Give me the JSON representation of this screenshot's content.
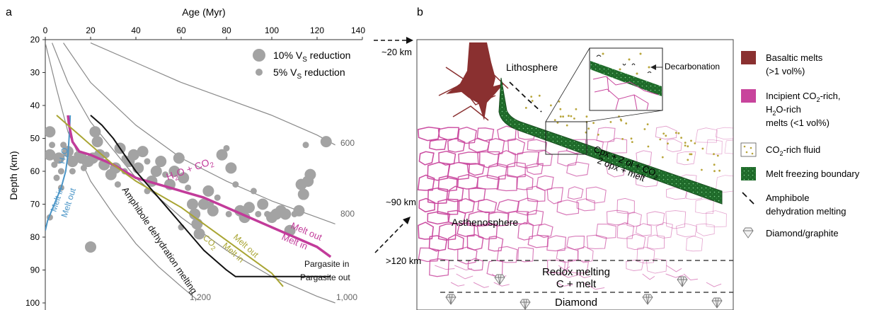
{
  "panel_a": {
    "letter": "a",
    "top_axis_label": "Age (Myr)",
    "top_ticks": [
      "0",
      "20",
      "40",
      "60",
      "80",
      "100",
      "120",
      "140"
    ],
    "y_axis_label": "Depth (km)",
    "y_ticks": [
      "20",
      "30",
      "40",
      "50",
      "60",
      "70",
      "80",
      "90",
      "100"
    ],
    "legend": {
      "big_pre": "10%  V",
      "big_sub": "S",
      "big_post": " reduction",
      "small_pre": "5%  V",
      "small_sub": "S",
      "small_post": " reduction"
    },
    "iso_labels": [
      "600",
      "800",
      "1,000",
      "1,200"
    ],
    "labels": {
      "h2o": "H",
      "h2o_sub": "2",
      "h2o_end": "O",
      "melt_in_blue": "Melt in",
      "melt_out_blue": "Melt out",
      "h2o_co2_a": "H",
      "h2o_co2_b": "2",
      "h2o_co2_c": "O + CO",
      "h2o_co2_d": "2",
      "amphibole": "Amphibole dehydration melting",
      "co2_a": "CO",
      "co2_b": "2",
      "melt_in_olive": "Melt in",
      "melt_out_olive": "Melt out",
      "melt_out_magenta": "Melt out",
      "melt_in_magenta": "Melt in",
      "pargasite_in": "Pargasite in",
      "pargasite_out": "Pargasite out"
    },
    "colors": {
      "h2o": "#4a95c7",
      "h2o_co2": "#c23b9a",
      "co2": "#a9a533",
      "amphibole": "#111111",
      "iso": "#8a8a8a",
      "dots": "#a3a3a3"
    }
  },
  "panel_b": {
    "letter": "b",
    "depth_labels": [
      "~20 km",
      "~90 km",
      ">120 km"
    ],
    "labels": {
      "lithosphere": "Lithosphere",
      "asthenosphere": "Asthenosphere",
      "decarbonation": "Decarbonation",
      "cpx_a": "Cpx + 2 ol + CO",
      "cpx_b": "2",
      "opx": "2 opx + melt",
      "redox": "Redox melting",
      "c_melt": "C + melt",
      "diamond": "Diamond"
    },
    "colors": {
      "basalt": "#8a3030",
      "incipient": "#c8449c",
      "green": "#1f6a2a",
      "fluid": "#b8a53a"
    }
  },
  "legend_b": [
    {
      "key": "basalt",
      "lines": [
        [
          "Basaltic melts"
        ],
        [
          "(>1 vol%)"
        ]
      ]
    },
    {
      "key": "incipient",
      "lines": [
        [
          "Incipient CO",
          "2",
          "-rich,"
        ],
        [
          "H",
          "2",
          "O-rich"
        ],
        [
          "melts (<1 vol%)"
        ]
      ]
    },
    {
      "key": "fluid",
      "lines": [
        [
          "CO",
          "2",
          "-rich fluid"
        ]
      ]
    },
    {
      "key": "freeze",
      "lines": [
        [
          "Melt freezing boundary"
        ]
      ]
    },
    {
      "key": "amph",
      "lines": [
        [
          "Amphibole"
        ],
        [
          "dehydration melting"
        ]
      ]
    },
    {
      "key": "diamond",
      "lines": [
        [
          "Diamond/graphite"
        ]
      ]
    }
  ],
  "chart_data": {
    "type": "scatter",
    "xlabel": "Age (Myr)",
    "ylabel": "Depth (km)",
    "xlim": [
      0,
      140
    ],
    "ylim": [
      100,
      20
    ],
    "x_ticks": [
      0,
      20,
      40,
      60,
      80,
      100,
      120,
      140
    ],
    "y_ticks": [
      20,
      30,
      40,
      50,
      60,
      70,
      80,
      90,
      100
    ],
    "points": [
      {
        "x": 2,
        "y": 48,
        "s": 1
      },
      {
        "x": 3,
        "y": 52,
        "s": 0
      },
      {
        "x": 2,
        "y": 55,
        "s": 1
      },
      {
        "x": 4,
        "y": 58,
        "s": 0
      },
      {
        "x": 6,
        "y": 56,
        "s": 1
      },
      {
        "x": 5,
        "y": 62,
        "s": 0
      },
      {
        "x": 7,
        "y": 60,
        "s": 0
      },
      {
        "x": 8,
        "y": 52,
        "s": 0
      },
      {
        "x": 10,
        "y": 54,
        "s": 1
      },
      {
        "x": 12,
        "y": 57,
        "s": 1
      },
      {
        "x": 14,
        "y": 55,
        "s": 0
      },
      {
        "x": 16,
        "y": 56,
        "s": 1
      },
      {
        "x": 17,
        "y": 59,
        "s": 0
      },
      {
        "x": 19,
        "y": 57,
        "s": 1
      },
      {
        "x": 21,
        "y": 56,
        "s": 1
      },
      {
        "x": 22,
        "y": 48,
        "s": 1
      },
      {
        "x": 23,
        "y": 51,
        "s": 1
      },
      {
        "x": 24,
        "y": 55,
        "s": 1
      },
      {
        "x": 26,
        "y": 58,
        "s": 1
      },
      {
        "x": 27,
        "y": 55,
        "s": 0
      },
      {
        "x": 29,
        "y": 61,
        "s": 1
      },
      {
        "x": 31,
        "y": 59,
        "s": 1
      },
      {
        "x": 33,
        "y": 53,
        "s": 1
      },
      {
        "x": 35,
        "y": 56,
        "s": 0
      },
      {
        "x": 37,
        "y": 57,
        "s": 1
      },
      {
        "x": 39,
        "y": 55,
        "s": 1
      },
      {
        "x": 41,
        "y": 59,
        "s": 1
      },
      {
        "x": 43,
        "y": 54,
        "s": 1
      },
      {
        "x": 45,
        "y": 57,
        "s": 0
      },
      {
        "x": 47,
        "y": 63,
        "s": 1
      },
      {
        "x": 49,
        "y": 60,
        "s": 1
      },
      {
        "x": 51,
        "y": 57,
        "s": 1
      },
      {
        "x": 53,
        "y": 61,
        "s": 0
      },
      {
        "x": 55,
        "y": 64,
        "s": 1
      },
      {
        "x": 57,
        "y": 60,
        "s": 1
      },
      {
        "x": 59,
        "y": 56,
        "s": 1
      },
      {
        "x": 61,
        "y": 62,
        "s": 1
      },
      {
        "x": 63,
        "y": 65,
        "s": 0
      },
      {
        "x": 65,
        "y": 70,
        "s": 1
      },
      {
        "x": 66,
        "y": 73,
        "s": 1
      },
      {
        "x": 67,
        "y": 76,
        "s": 1
      },
      {
        "x": 68,
        "y": 79,
        "s": 1
      },
      {
        "x": 70,
        "y": 70,
        "s": 1
      },
      {
        "x": 72,
        "y": 66,
        "s": 1
      },
      {
        "x": 74,
        "y": 72,
        "s": 1
      },
      {
        "x": 76,
        "y": 68,
        "s": 0
      },
      {
        "x": 78,
        "y": 55,
        "s": 1
      },
      {
        "x": 80,
        "y": 53,
        "s": 0
      },
      {
        "x": 82,
        "y": 59,
        "s": 1
      },
      {
        "x": 84,
        "y": 64,
        "s": 0
      },
      {
        "x": 86,
        "y": 72,
        "s": 1
      },
      {
        "x": 88,
        "y": 74,
        "s": 1
      },
      {
        "x": 90,
        "y": 71,
        "s": 1
      },
      {
        "x": 92,
        "y": 66,
        "s": 0
      },
      {
        "x": 94,
        "y": 73,
        "s": 0
      },
      {
        "x": 96,
        "y": 70,
        "s": 1
      },
      {
        "x": 98,
        "y": 73,
        "s": 0
      },
      {
        "x": 100,
        "y": 74,
        "s": 1
      },
      {
        "x": 102,
        "y": 73,
        "s": 1
      },
      {
        "x": 104,
        "y": 72,
        "s": 1
      },
      {
        "x": 106,
        "y": 73,
        "s": 1
      },
      {
        "x": 108,
        "y": 78,
        "s": 1
      },
      {
        "x": 110,
        "y": 73,
        "s": 0
      },
      {
        "x": 112,
        "y": 72,
        "s": 1
      },
      {
        "x": 113,
        "y": 64,
        "s": 1
      },
      {
        "x": 114,
        "y": 67,
        "s": 1
      },
      {
        "x": 116,
        "y": 63,
        "s": 1
      },
      {
        "x": 117,
        "y": 61,
        "s": 1
      },
      {
        "x": 115,
        "y": 52,
        "s": 0
      },
      {
        "x": 124,
        "y": 51,
        "s": 1
      },
      {
        "x": 35,
        "y": 60,
        "s": 0
      },
      {
        "x": 45,
        "y": 66,
        "s": 0
      },
      {
        "x": 60,
        "y": 77,
        "s": 0
      },
      {
        "x": 73,
        "y": 70,
        "s": 0
      },
      {
        "x": 81,
        "y": 73,
        "s": 0
      },
      {
        "x": 12,
        "y": 60,
        "s": 0
      },
      {
        "x": 7,
        "y": 65,
        "s": 0
      },
      {
        "x": 2,
        "y": 74,
        "s": 0
      },
      {
        "x": 32,
        "y": 64,
        "s": 0
      },
      {
        "x": 20,
        "y": 83,
        "s": 1
      }
    ],
    "series": [
      {
        "name": "H2O",
        "x": [
          11,
          10.8,
          10.5,
          10,
          9,
          7,
          4,
          1,
          0
        ],
        "y": [
          43,
          46,
          50,
          55,
          60,
          65,
          70,
          75,
          78
        ]
      },
      {
        "name": "H2O + CO2",
        "x": [
          10,
          10.5,
          12,
          15,
          20,
          30,
          40,
          50,
          60,
          70,
          80,
          90,
          100,
          110,
          120,
          126
        ],
        "y": [
          43,
          46,
          51,
          54,
          55,
          58,
          62,
          64,
          66,
          68,
          71,
          74,
          77,
          80,
          83,
          86
        ]
      },
      {
        "name": "CO2",
        "x": [
          5,
          10,
          15,
          20,
          30,
          40,
          50,
          60,
          70,
          80,
          90,
          100,
          105
        ],
        "y": [
          43,
          46,
          49,
          52,
          58,
          63,
          67,
          71,
          76,
          81,
          86,
          91,
          95
        ]
      },
      {
        "name": "Amphibole dehydration melting",
        "x": [
          20,
          25,
          30,
          35,
          40,
          45,
          50,
          55,
          60,
          65,
          70,
          75,
          80,
          84,
          100,
          126
        ],
        "y": [
          43,
          46,
          50,
          55,
          60,
          64,
          68,
          72,
          76,
          80,
          84,
          87,
          90,
          92,
          92,
          92
        ]
      }
    ],
    "isotherms": [
      {
        "name": "600",
        "x": [
          20,
          40,
          60,
          80,
          100,
          120,
          128
        ],
        "y": [
          21,
          27,
          33,
          38,
          43,
          49,
          52
        ]
      },
      {
        "name": "800",
        "x": [
          8,
          20,
          40,
          60,
          80,
          100,
          120,
          128
        ],
        "y": [
          21,
          33,
          46,
          56,
          63,
          69,
          74,
          76
        ]
      },
      {
        "name": "1,000",
        "x": [
          3,
          10,
          20,
          40,
          60,
          80,
          100,
          120,
          128
        ],
        "y": [
          21,
          33,
          45,
          62,
          74,
          84,
          92,
          98,
          100
        ]
      },
      {
        "name": "1,200",
        "x": [
          0,
          5,
          10,
          20,
          30,
          40,
          50,
          60,
          67
        ],
        "y": [
          21,
          35,
          48,
          63,
          73,
          82,
          89,
          95,
          99
        ]
      }
    ]
  }
}
